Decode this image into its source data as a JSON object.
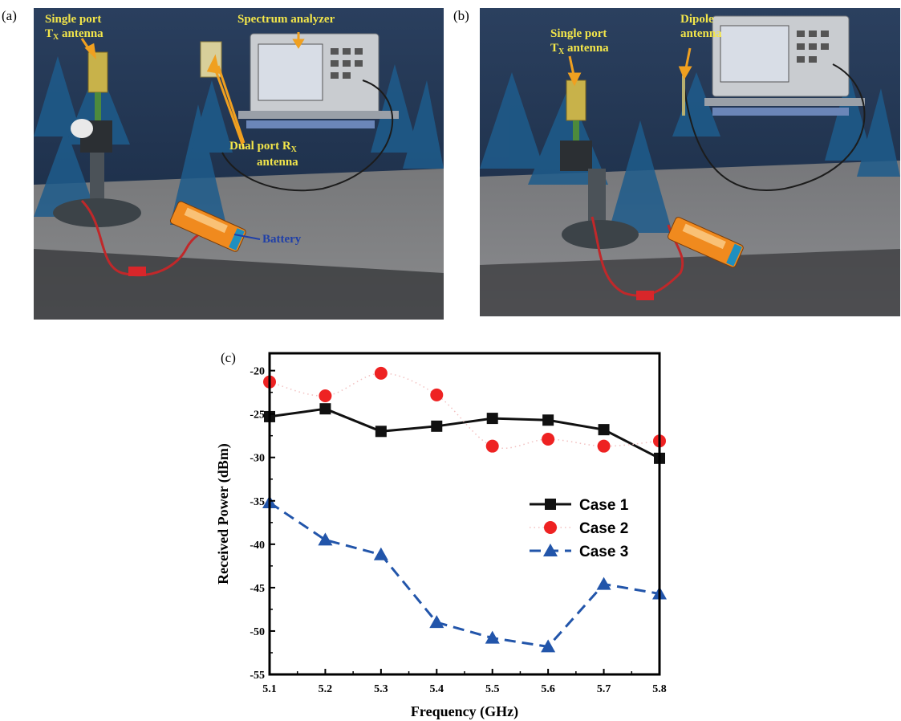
{
  "panels": {
    "a": {
      "label": "(a)",
      "annotations": {
        "tx_antenna_line1": "Single port",
        "tx_antenna_line2": "T",
        "tx_antenna_sub": "X",
        "tx_antenna_line2_rest": " antenna",
        "spectrum_analyzer": "Spectrum analyzer",
        "rx_antenna_line1": "Dual port R",
        "rx_antenna_sub": "X",
        "rx_antenna_line2": "antenna",
        "battery": "Battery"
      }
    },
    "b": {
      "label": "(b)",
      "annotations": {
        "tx_antenna_line1": "Single port",
        "tx_antenna_line2": "T",
        "tx_antenna_sub": "X",
        "tx_antenna_line2_rest": " antenna",
        "dipole_line1": "Dipole",
        "dipole_line2": "antenna"
      }
    },
    "c": {
      "label": "(c)"
    }
  },
  "colors": {
    "annotation_yellow": "#f3e64a",
    "battery_blue": "#1f3fa8",
    "arrow_orange": "#f0a020",
    "case1": "#111111",
    "case2": "#ee2222",
    "case3": "#2255aa"
  },
  "chart_data": {
    "type": "line",
    "xlabel": "Frequency (GHz)",
    "ylabel": "Received Power (dBm)",
    "x": [
      5.1,
      5.2,
      5.3,
      5.4,
      5.5,
      5.6,
      5.7,
      5.8
    ],
    "xlim": [
      5.1,
      5.8
    ],
    "ylim": [
      -55,
      -18
    ],
    "x_ticks": [
      "5.1",
      "5.2",
      "5.3",
      "5.4",
      "5.5",
      "5.6",
      "5.7",
      "5.8"
    ],
    "y_ticks": [
      "-20",
      "-25",
      "-30",
      "-35",
      "-40",
      "-45",
      "-50",
      "-55"
    ],
    "y_tick_values": [
      -20,
      -25,
      -30,
      -35,
      -40,
      -45,
      -50,
      -55
    ],
    "legend_position": "right-middle",
    "grid": false,
    "series": [
      {
        "name": "Case 1",
        "style": "solid-square",
        "values": [
          -25.3,
          -24.4,
          -27.0,
          -26.4,
          -25.5,
          -25.7,
          -26.8,
          -30.1
        ]
      },
      {
        "name": "Case 2",
        "style": "dotted-circle",
        "values": [
          -21.3,
          -22.9,
          -20.3,
          -22.8,
          -28.7,
          -27.9,
          -28.7,
          -28.1
        ]
      },
      {
        "name": "Case 3",
        "style": "dashed-triangle",
        "values": [
          -35.2,
          -39.5,
          -41.2,
          -49.0,
          -50.8,
          -51.8,
          -44.6,
          -45.7
        ]
      }
    ]
  }
}
